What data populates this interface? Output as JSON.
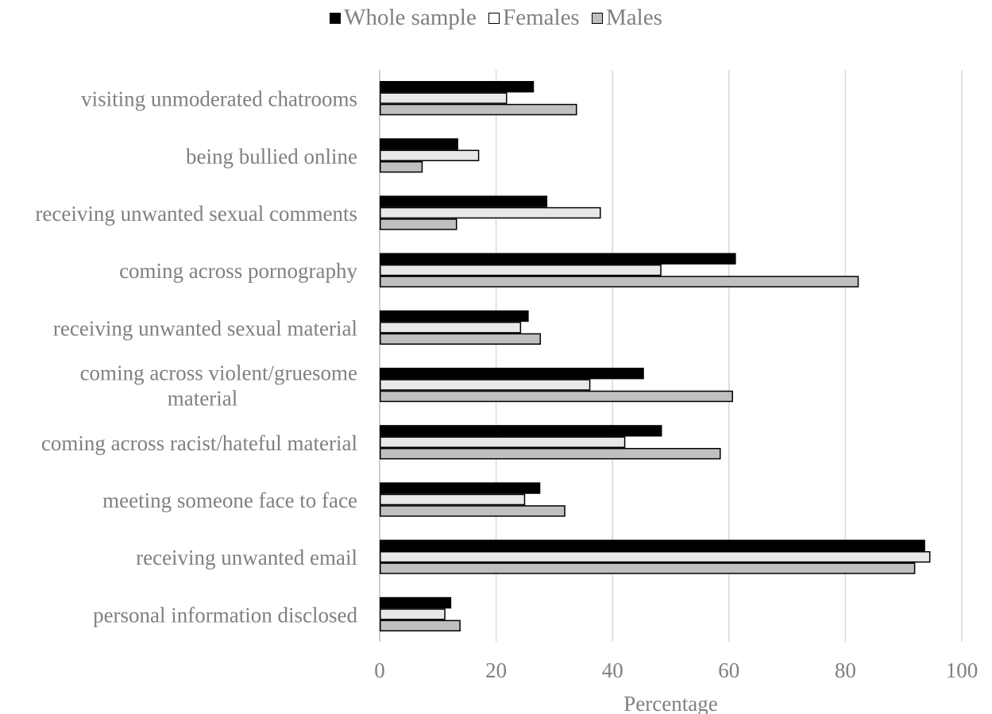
{
  "chart_data": {
    "type": "bar",
    "orientation": "horizontal",
    "title": "",
    "xlabel": "Percentage",
    "ylabel": "",
    "xlim": [
      0,
      100
    ],
    "x_ticks": [
      "0",
      "20",
      "40",
      "60",
      "80",
      "100"
    ],
    "grid": "vertical",
    "legend_position": "top",
    "categories": [
      "visiting unmoderated chatrooms",
      "being bullied online",
      "receiving unwanted sexual comments",
      "coming across pornography",
      "receiving unwanted sexual material",
      "coming across violent/gruesome material",
      "coming across racist/hateful material",
      "meeting someone face to face",
      "receiving unwanted email",
      "personal information disclosed"
    ],
    "category_label_lines": [
      [
        "visiting unmoderated chatrooms"
      ],
      [
        "being bullied online"
      ],
      [
        "receiving unwanted sexual comments"
      ],
      [
        "coming across pornography"
      ],
      [
        "receiving unwanted sexual material"
      ],
      [
        "coming across violent/gruesome",
        "material"
      ],
      [
        "coming across racist/hateful material"
      ],
      [
        "meeting someone face to face"
      ],
      [
        "receiving unwanted email"
      ],
      [
        "personal information disclosed"
      ]
    ],
    "series": [
      {
        "name": "Whole sample",
        "color": "#000000",
        "values": [
          26.5,
          13.5,
          28.8,
          61.2,
          25.6,
          45.4,
          48.5,
          27.6,
          93.7,
          12.3
        ]
      },
      {
        "name": "Females",
        "color": "#e8e8e8",
        "values": [
          21.9,
          17.1,
          38.0,
          48.4,
          24.3,
          36.2,
          42.2,
          25.0,
          94.6,
          11.3
        ]
      },
      {
        "name": "Males",
        "color": "#c0c0c0",
        "values": [
          33.9,
          7.4,
          13.3,
          82.3,
          27.7,
          60.7,
          58.6,
          31.9,
          92.0,
          13.9
        ]
      }
    ]
  }
}
